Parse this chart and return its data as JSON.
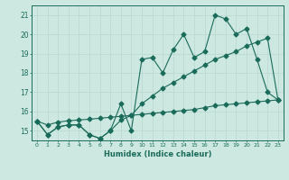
{
  "x": [
    0,
    1,
    2,
    3,
    4,
    5,
    6,
    7,
    8,
    9,
    10,
    11,
    12,
    13,
    14,
    15,
    16,
    17,
    18,
    19,
    20,
    21,
    22,
    23
  ],
  "line1": [
    15.5,
    14.8,
    15.2,
    15.3,
    15.3,
    14.8,
    14.6,
    15.0,
    16.4,
    15.0,
    18.7,
    18.8,
    18.0,
    19.2,
    20.0,
    18.8,
    19.1,
    21.0,
    20.8,
    20.0,
    20.3,
    18.7,
    17.0,
    16.6
  ],
  "line2": [
    15.5,
    14.8,
    15.2,
    15.3,
    15.3,
    14.8,
    14.6,
    15.0,
    15.55,
    15.8,
    16.4,
    16.8,
    17.2,
    17.5,
    17.8,
    18.1,
    18.4,
    18.7,
    18.9,
    19.1,
    19.4,
    19.6,
    19.8,
    16.6
  ],
  "line3": [
    15.5,
    15.3,
    15.45,
    15.52,
    15.56,
    15.6,
    15.65,
    15.7,
    15.75,
    15.8,
    15.85,
    15.9,
    15.95,
    16.0,
    16.05,
    16.1,
    16.2,
    16.3,
    16.35,
    16.4,
    16.45,
    16.5,
    16.55,
    16.6
  ],
  "line_color": "#1a6b5a",
  "bg_color": "#cce8e0",
  "grid_color": "#b8d8d0",
  "xlabel": "Humidex (Indice chaleur)",
  "ylim": [
    14.5,
    21.5
  ],
  "xlim": [
    -0.5,
    23.5
  ],
  "yticks": [
    15,
    16,
    17,
    18,
    19,
    20,
    21
  ],
  "xticks": [
    0,
    1,
    2,
    3,
    4,
    5,
    6,
    7,
    8,
    9,
    10,
    11,
    12,
    13,
    14,
    15,
    16,
    17,
    18,
    19,
    20,
    21,
    22,
    23
  ]
}
